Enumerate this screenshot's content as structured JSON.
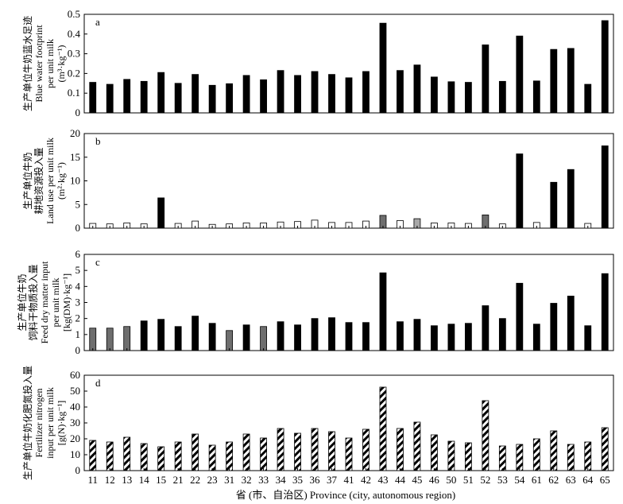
{
  "chart_data": {
    "type": "bar",
    "xlabel": "省 (市、自治区) Province (city, autonomous region)",
    "categories": [
      "11",
      "12",
      "13",
      "14",
      "15",
      "21",
      "22",
      "23",
      "31",
      "32",
      "33",
      "34",
      "35",
      "36",
      "37",
      "41",
      "42",
      "43",
      "44",
      "45",
      "46",
      "50",
      "51",
      "52",
      "53",
      "54",
      "61",
      "62",
      "63",
      "64",
      "65"
    ],
    "panels": [
      {
        "letter": "a",
        "ylabel": [
          "生产单位牛奶蓝水足迹",
          "Blue water footprint",
          "per unit milk",
          "(m³·kg⁻¹)"
        ],
        "ylim": [
          0,
          0.5
        ],
        "yticks": [
          "0",
          "0.1",
          "0.2",
          "0.3",
          "0.4",
          "0.5"
        ],
        "values": [
          0.155,
          0.145,
          0.17,
          0.16,
          0.205,
          0.15,
          0.195,
          0.14,
          0.148,
          0.19,
          0.168,
          0.215,
          0.19,
          0.21,
          0.195,
          0.178,
          0.21,
          0.455,
          0.215,
          0.243,
          0.182,
          0.158,
          0.155,
          0.345,
          0.16,
          0.39,
          0.162,
          0.322,
          0.327,
          0.145,
          0.468
        ],
        "colors": [
          "black",
          "black",
          "black",
          "black",
          "black",
          "black",
          "black",
          "black",
          "black",
          "black",
          "black",
          "black",
          "black",
          "black",
          "black",
          "black",
          "black",
          "black",
          "black",
          "black",
          "black",
          "black",
          "black",
          "black",
          "black",
          "black",
          "black",
          "black",
          "black",
          "black",
          "black"
        ]
      },
      {
        "letter": "b",
        "ylabel": [
          "生产单位牛奶",
          "耕地资源投入量",
          "Land use per unit milk",
          "(m²·kg⁻¹)"
        ],
        "ylim": [
          0,
          20
        ],
        "yticks": [
          "0",
          "5",
          "10",
          "15",
          "20"
        ],
        "values": [
          1.0,
          0.9,
          1.1,
          0.9,
          6.4,
          1.0,
          1.5,
          0.8,
          0.9,
          1.1,
          1.1,
          1.3,
          1.4,
          1.7,
          1.2,
          1.2,
          1.5,
          2.7,
          1.6,
          2.0,
          1.1,
          1.1,
          1.0,
          2.8,
          0.9,
          15.7,
          1.2,
          9.7,
          12.4,
          1.0,
          17.4
        ],
        "colors": [
          "white",
          "white",
          "white",
          "white",
          "black",
          "white",
          "white",
          "white",
          "white",
          "white",
          "white",
          "white",
          "white",
          "white",
          "white",
          "white",
          "white",
          "gray",
          "white",
          "lightgray",
          "white",
          "white",
          "white",
          "gray",
          "white",
          "black",
          "white",
          "black",
          "black",
          "white",
          "black"
        ]
      },
      {
        "letter": "c",
        "ylabel": [
          "生产单位牛奶",
          "饲料干物质投入量",
          "Feed dry matter input",
          "per unit milk",
          "[kg(DM)·kg⁻¹]"
        ],
        "ylim": [
          0,
          6
        ],
        "yticks": [
          "0",
          "1",
          "2",
          "3",
          "4",
          "5",
          "6"
        ],
        "values": [
          1.4,
          1.4,
          1.5,
          1.85,
          1.95,
          1.5,
          2.15,
          1.7,
          1.25,
          1.6,
          1.5,
          1.8,
          1.6,
          2.0,
          2.05,
          1.75,
          1.75,
          4.85,
          1.8,
          1.95,
          1.55,
          1.65,
          1.7,
          2.8,
          2.0,
          4.2,
          1.65,
          2.95,
          3.4,
          1.55,
          4.8
        ],
        "colors": [
          "gray",
          "gray",
          "gray",
          "black",
          "black",
          "black",
          "black",
          "black",
          "gray",
          "black",
          "gray",
          "black",
          "black",
          "black",
          "black",
          "black",
          "black",
          "black",
          "black",
          "black",
          "black",
          "black",
          "black",
          "black",
          "black",
          "black",
          "black",
          "black",
          "black",
          "black",
          "black"
        ]
      },
      {
        "letter": "d",
        "ylabel": [
          "生产单位牛奶化肥氮投入量",
          "Fertilizer nitrogen",
          "input per unit milk",
          "[g(N)·kg⁻¹]"
        ],
        "ylim": [
          0,
          60
        ],
        "yticks": [
          "0",
          "10",
          "20",
          "30",
          "40",
          "50",
          "60"
        ],
        "values": [
          19,
          18,
          21,
          17,
          15,
          18,
          23,
          16,
          18,
          23,
          20.5,
          26.5,
          23.5,
          26.5,
          24.5,
          20.5,
          26,
          52.5,
          26.5,
          30.5,
          22.5,
          18.5,
          17.5,
          44,
          15.5,
          16.5,
          20,
          25,
          16.5,
          18,
          27
        ],
        "colors": [
          "hatched",
          "hatched",
          "hatched",
          "hatched",
          "hatched",
          "hatched",
          "hatched",
          "hatched",
          "hatched",
          "hatched",
          "hatched",
          "hatched",
          "hatched",
          "hatched",
          "hatched",
          "hatched",
          "hatched",
          "hatched",
          "hatched",
          "hatched",
          "hatched",
          "hatched",
          "hatched",
          "hatched",
          "hatched",
          "hatched",
          "hatched",
          "hatched",
          "hatched",
          "hatched",
          "hatched"
        ]
      }
    ]
  }
}
